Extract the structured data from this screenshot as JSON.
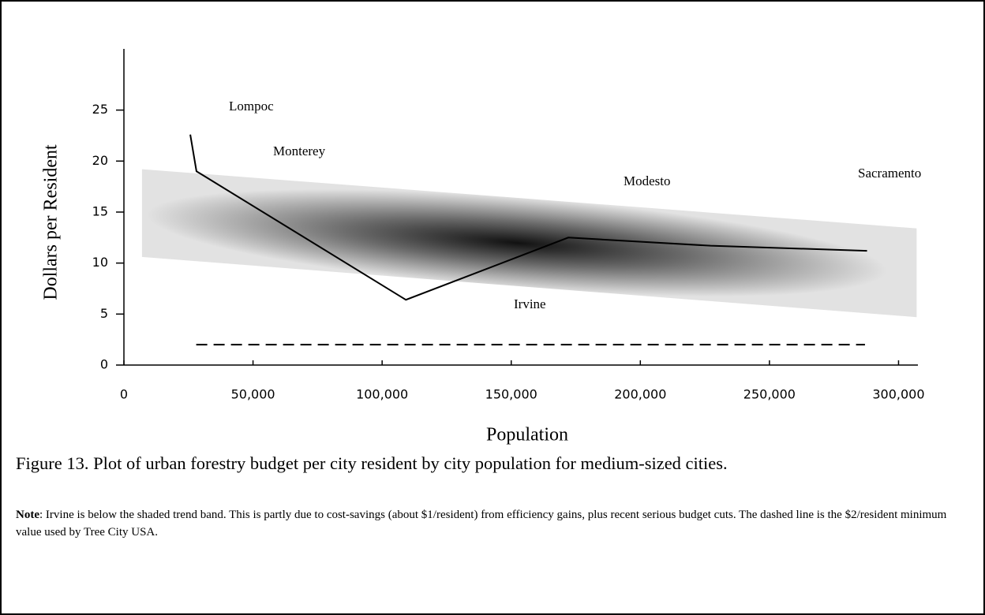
{
  "chart_data": {
    "type": "line",
    "x_label": "Population",
    "y_label": "Dollars per Resident",
    "x": [
      25700,
      28100,
      109200,
      172100,
      227200,
      287800
    ],
    "values": [
      22.6,
      19.0,
      6.4,
      12.5,
      11.7,
      11.2
    ],
    "color": "#000000",
    "band": {
      "x": [
        7000,
        307000
      ],
      "upper": [
        19.2,
        13.4
      ],
      "lower": [
        10.6,
        4.7
      ]
    },
    "reference_line": {
      "value": 2,
      "x": [
        28000,
        287000
      ]
    },
    "annotations": [
      "Lompoc",
      "Monterey",
      "Modesto",
      "Sacramento",
      "Irvine"
    ],
    "xlim": [
      0,
      307500
    ],
    "xticks": [
      0,
      {
        "value": 50000,
        "label": "50,000"
      },
      {
        "value": 100000,
        "label": "100,000"
      },
      {
        "value": 150000,
        "label": "150,000"
      },
      {
        "value": 200000,
        "label": "200,000"
      },
      {
        "value": 250000,
        "label": "250,000"
      },
      {
        "value": 300000,
        "label": "300,000"
      }
    ],
    "ylim": [
      0,
      31
    ],
    "yticks": [
      0,
      5,
      10,
      15,
      20,
      25
    ]
  },
  "caption": "Figure 13.  Plot of urban forestry budget per city resident by city population for medium-sized cities.",
  "note_label": "Note",
  "note_text": ":  Irvine is below the shaded trend band.  This is partly due to cost-savings (about $1/resident) from efficiency gains, plus recent serious budget cuts.  The dashed line is the $2/resident minimum value used by Tree City USA."
}
